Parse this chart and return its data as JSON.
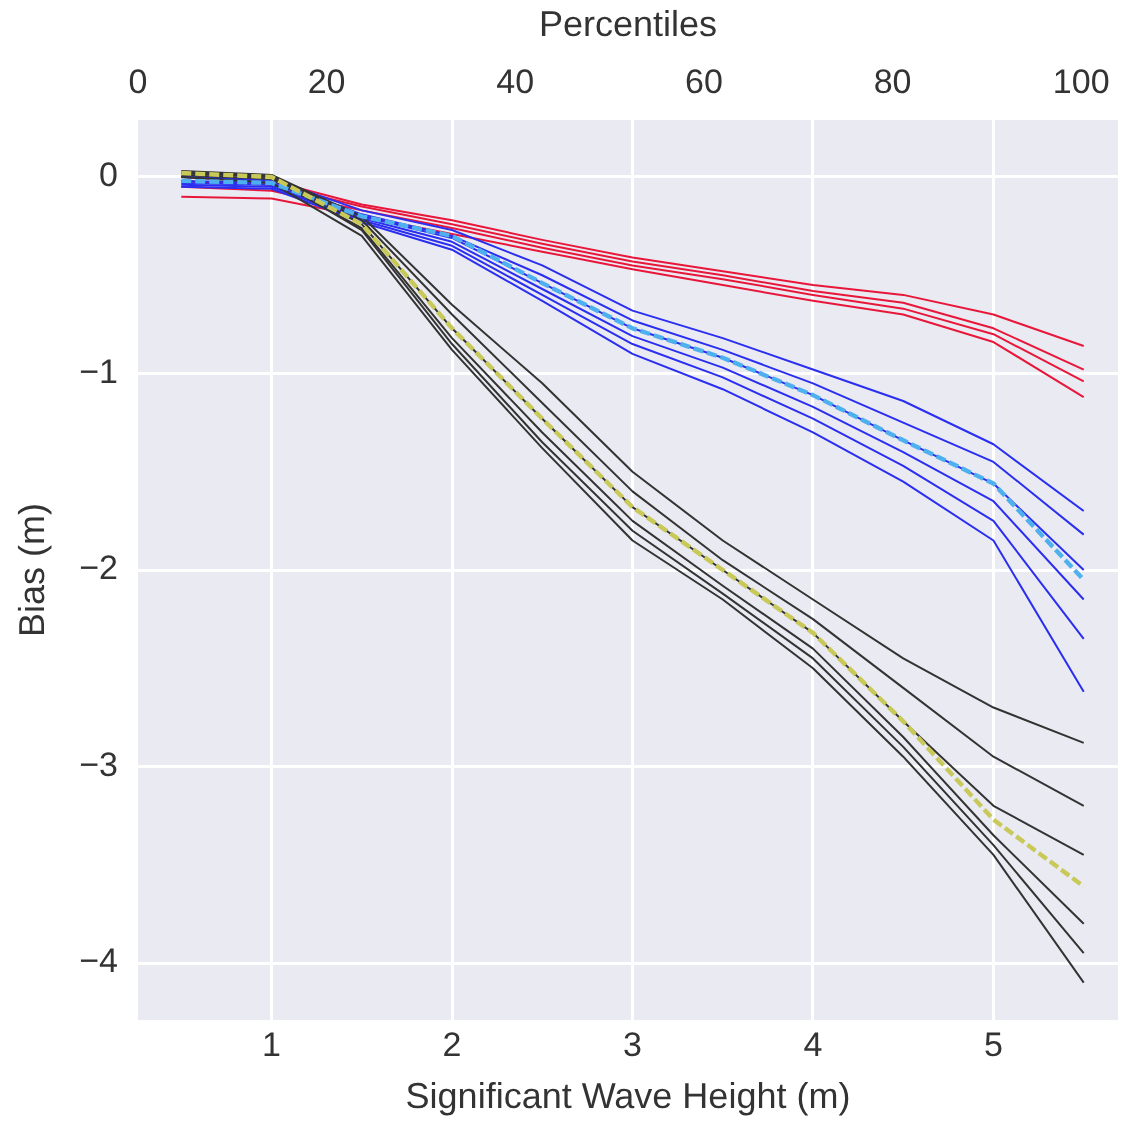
{
  "chart_data": {
    "type": "line",
    "xlabel": "Significant Wave Height (m)",
    "ylabel": "Bias (m)",
    "x2label": "Percentiles",
    "x": [
      0.5,
      1,
      1.5,
      2,
      2.5,
      3,
      3.5,
      4,
      4.5,
      5,
      5.5
    ],
    "xlim": [
      0.26,
      5.69
    ],
    "xticks": [
      1,
      2,
      3,
      4,
      5
    ],
    "x2lim": [
      0,
      103.9
    ],
    "x2ticks": [
      0,
      20,
      40,
      60,
      80,
      100
    ],
    "ylim": [
      -4.29,
      0.29
    ],
    "yticks": [
      0,
      -1,
      -2,
      -3,
      -4
    ],
    "grid": "x_and_y",
    "marker": "none",
    "series": [
      {
        "color": "#e8173a",
        "values": [
          0,
          -0.02,
          -0.14,
          -0.22,
          -0.32,
          -0.41,
          -0.48,
          -0.55,
          -0.6,
          -0.7,
          -0.86
        ]
      },
      {
        "color": "#e8173a",
        "values": [
          -0.02,
          -0.04,
          -0.15,
          -0.24,
          -0.34,
          -0.43,
          -0.5,
          -0.58,
          -0.64,
          -0.77,
          -0.98
        ]
      },
      {
        "color": "#e8173a",
        "values": [
          -0.05,
          -0.07,
          -0.17,
          -0.26,
          -0.36,
          -0.45,
          -0.52,
          -0.6,
          -0.67,
          -0.8,
          -1.04
        ]
      },
      {
        "color": "#e8173a",
        "values": [
          -0.1,
          -0.11,
          -0.2,
          -0.29,
          -0.38,
          -0.47,
          -0.55,
          -0.63,
          -0.7,
          -0.84,
          -1.12
        ]
      },
      {
        "color": "#2a2ef0",
        "values": [
          0,
          -0.01,
          -0.17,
          -0.27,
          -0.45,
          -0.68,
          -0.82,
          -0.98,
          -1.14,
          -1.36,
          -1.7
        ]
      },
      {
        "color": "#2a2ef0",
        "values": [
          0,
          -0.02,
          -0.19,
          -0.3,
          -0.5,
          -0.73,
          -0.88,
          -1.05,
          -1.25,
          -1.45,
          -1.82
        ]
      },
      {
        "color": "#2a2ef0",
        "values": [
          -0.02,
          -0.03,
          -0.2,
          -0.31,
          -0.54,
          -0.77,
          -0.92,
          -1.11,
          -1.34,
          -1.56,
          -2.0
        ]
      },
      {
        "color": "#2a2ef0",
        "values": [
          -0.03,
          -0.04,
          -0.21,
          -0.33,
          -0.57,
          -0.81,
          -0.97,
          -1.17,
          -1.4,
          -1.65,
          -2.15
        ]
      },
      {
        "color": "#2a2ef0",
        "values": [
          -0.04,
          -0.05,
          -0.22,
          -0.35,
          -0.6,
          -0.85,
          -1.02,
          -1.23,
          -1.47,
          -1.75,
          -2.35
        ]
      },
      {
        "color": "#2a2ef0",
        "values": [
          -0.05,
          -0.06,
          -0.23,
          -0.37,
          -0.63,
          -0.9,
          -1.08,
          -1.3,
          -1.55,
          -1.85,
          -2.62
        ]
      },
      {
        "color": "#333333",
        "values": [
          0.02,
          0.01,
          -0.2,
          -0.65,
          -1.05,
          -1.5,
          -1.85,
          -2.15,
          -2.45,
          -2.7,
          -2.88
        ]
      },
      {
        "color": "#333333",
        "values": [
          0.03,
          0.01,
          -0.22,
          -0.7,
          -1.15,
          -1.6,
          -1.95,
          -2.25,
          -2.6,
          -2.95,
          -3.2
        ]
      },
      {
        "color": "#333333",
        "values": [
          0.02,
          0,
          -0.24,
          -0.77,
          -1.23,
          -1.68,
          -2.0,
          -2.32,
          -2.77,
          -3.2,
          -3.45
        ]
      },
      {
        "color": "#333333",
        "values": [
          0.01,
          -0.01,
          -0.26,
          -0.82,
          -1.3,
          -1.75,
          -2.08,
          -2.4,
          -2.85,
          -3.35,
          -3.8
        ]
      },
      {
        "color": "#333333",
        "values": [
          0.02,
          0,
          -0.27,
          -0.85,
          -1.35,
          -1.8,
          -2.12,
          -2.45,
          -2.9,
          -3.4,
          -3.95
        ]
      },
      {
        "color": "#333333",
        "values": [
          0,
          -0.03,
          -0.3,
          -0.88,
          -1.38,
          -1.85,
          -2.15,
          -2.5,
          -2.95,
          -3.45,
          -4.1
        ]
      },
      {
        "color": "#4fb0f0",
        "line_style": "dashed",
        "values": [
          -0.02,
          -0.03,
          -0.2,
          -0.3,
          -0.54,
          -0.77,
          -0.92,
          -1.11,
          -1.34,
          -1.56,
          -2.05
        ]
      },
      {
        "color": "#c9c95a",
        "line_style": "dashed",
        "values": [
          0.02,
          0,
          -0.24,
          -0.77,
          -1.23,
          -1.68,
          -2.0,
          -2.32,
          -2.77,
          -3.27,
          -3.61
        ]
      }
    ]
  }
}
